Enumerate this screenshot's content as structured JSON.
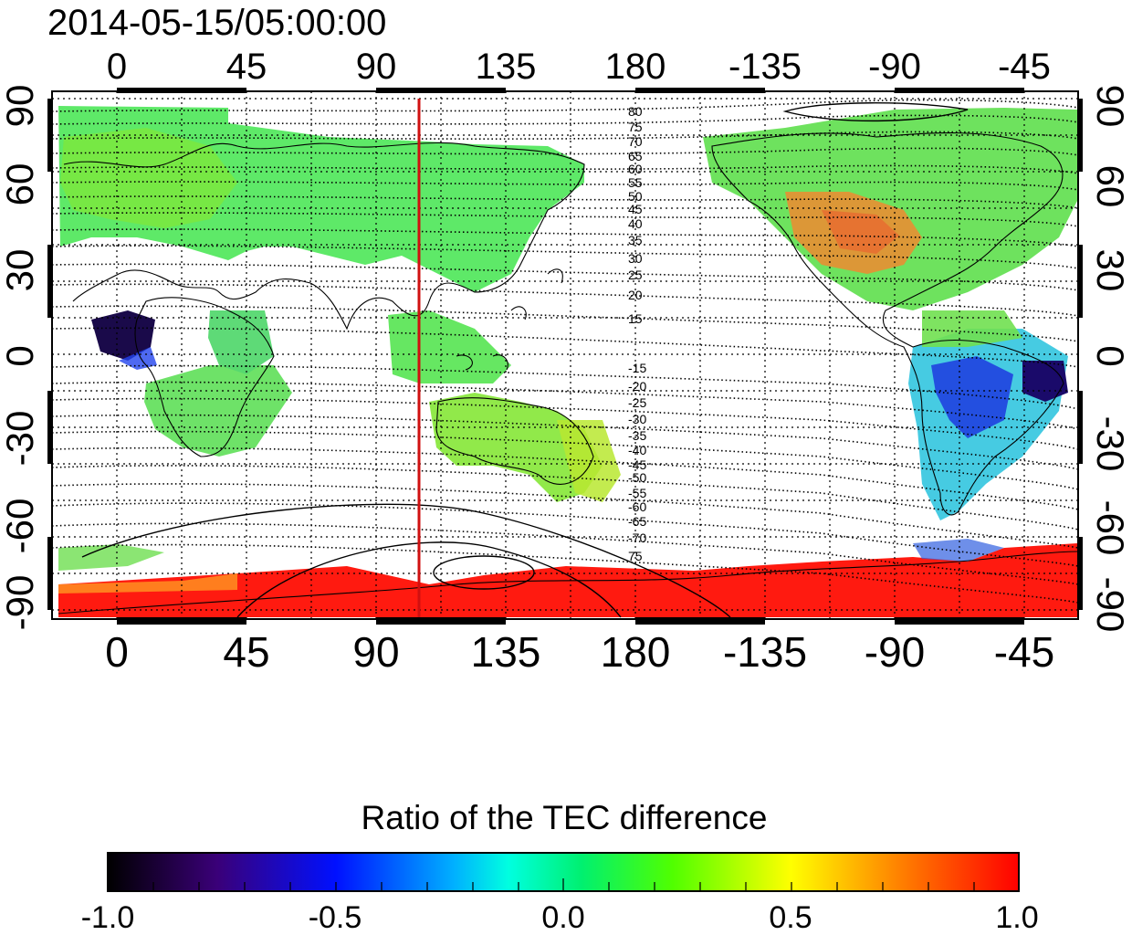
{
  "figure": {
    "timestamp": "2014-05-15/05:00:00",
    "top_lon_labels": [
      "0",
      "45",
      "90",
      "135",
      "180",
      "-135",
      "-90",
      "-45"
    ],
    "bottom_lon_labels": [
      "0",
      "45",
      "90",
      "135",
      "180",
      "-135",
      "-90",
      "-45"
    ],
    "left_lat_labels": [
      "90",
      "60",
      "30",
      "0",
      "-30",
      "-60",
      "-90"
    ],
    "right_lat_labels": [
      "90",
      "60",
      "30",
      "0",
      "-30",
      "-60",
      "-90"
    ],
    "contour_labels_north": [
      "80",
      "75",
      "70",
      "65",
      "60",
      "55",
      "50",
      "45",
      "40",
      "35",
      "30",
      "25",
      "20",
      "15"
    ],
    "contour_labels_south": [
      "-15",
      "-20",
      "-25",
      "-30",
      "-35",
      "-40",
      "-45",
      "-50",
      "-55",
      "-60",
      "-65",
      "-70",
      "75"
    ],
    "colorbar_title": "Ratio of the TEC difference",
    "colorbar_ticks": [
      "-1.0",
      "-0.5",
      "0.0",
      "0.5",
      "1.0"
    ],
    "colorbar_range": [
      -1.0,
      1.0
    ],
    "marker_line_color": "#d01010",
    "marker_longitude": 105
  }
}
